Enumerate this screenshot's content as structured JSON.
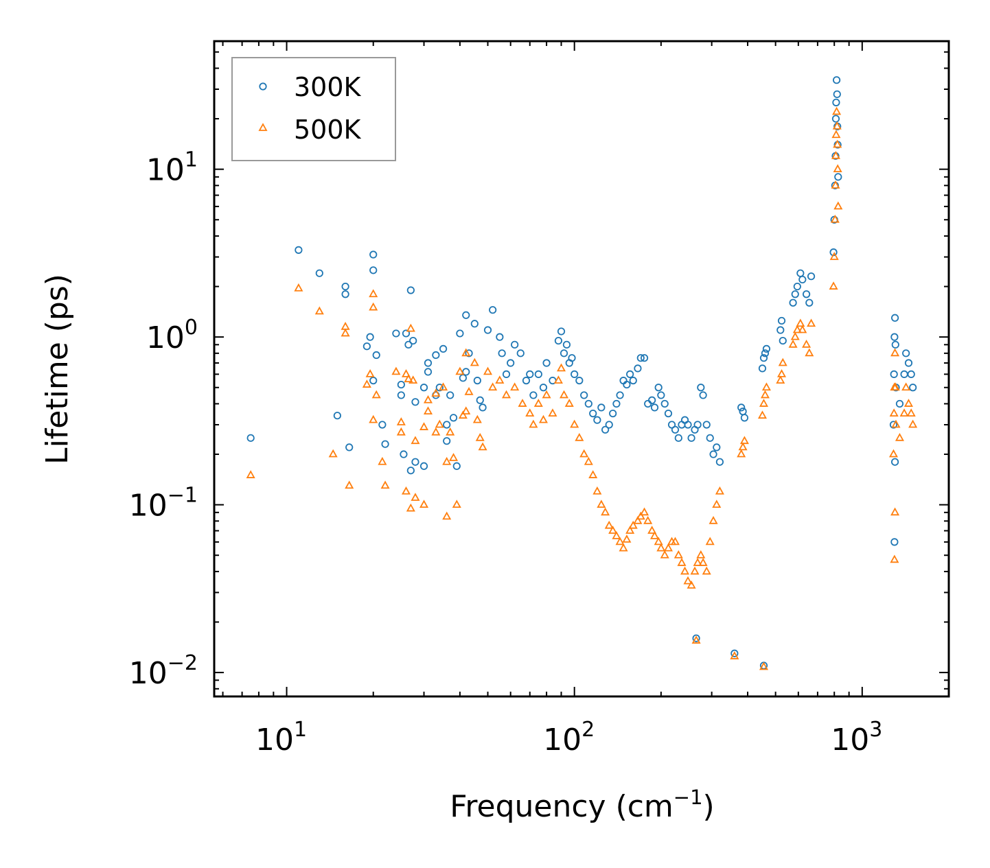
{
  "chart_data": {
    "type": "scatter",
    "x_scale": "log",
    "y_scale": "log",
    "xlabel": "Frequency (cm",
    "xlabel_sup": "−1",
    "xlabel_end": ")",
    "ylabel": "Lifetime (ps)",
    "xlim": [
      5.6,
      2000
    ],
    "ylim": [
      0.0072,
      58
    ],
    "x_ticks": [
      {
        "value": 10,
        "base": "10",
        "exp": "1"
      },
      {
        "value": 100,
        "base": "10",
        "exp": "2"
      },
      {
        "value": 1000,
        "base": "10",
        "exp": "3"
      }
    ],
    "y_ticks": [
      {
        "value": 0.01,
        "base": "10",
        "exp": "−2"
      },
      {
        "value": 0.1,
        "base": "10",
        "exp": "−1"
      },
      {
        "value": 1,
        "base": "10",
        "exp": "0"
      },
      {
        "value": 10,
        "base": "10",
        "exp": "1"
      }
    ],
    "legend": {
      "position": "top-left",
      "entries": [
        "300K",
        "500K"
      ]
    },
    "series": [
      {
        "name": "300K",
        "marker": "circle-open",
        "color": "#1f77b4",
        "points": [
          [
            7.5,
            0.25
          ],
          [
            11,
            3.3
          ],
          [
            13,
            2.4
          ],
          [
            15,
            0.34
          ],
          [
            16,
            2.0
          ],
          [
            16,
            1.8
          ],
          [
            16.5,
            0.22
          ],
          [
            19,
            0.88
          ],
          [
            19.5,
            1.0
          ],
          [
            20,
            2.5
          ],
          [
            20,
            3.1
          ],
          [
            20,
            0.55
          ],
          [
            20.5,
            0.78
          ],
          [
            21.5,
            0.3
          ],
          [
            22,
            0.23
          ],
          [
            24,
            1.05
          ],
          [
            25,
            0.45
          ],
          [
            25,
            0.52
          ],
          [
            25.5,
            0.2
          ],
          [
            26,
            1.05
          ],
          [
            26.5,
            0.9
          ],
          [
            27,
            1.9
          ],
          [
            27,
            0.16
          ],
          [
            27.5,
            0.95
          ],
          [
            28,
            0.41
          ],
          [
            28,
            0.18
          ],
          [
            30,
            0.5
          ],
          [
            30,
            0.17
          ],
          [
            31,
            0.62
          ],
          [
            31,
            0.7
          ],
          [
            33,
            0.78
          ],
          [
            33,
            0.45
          ],
          [
            34,
            0.5
          ],
          [
            35,
            0.85
          ],
          [
            36,
            0.3
          ],
          [
            36,
            0.24
          ],
          [
            37,
            0.45
          ],
          [
            38,
            0.33
          ],
          [
            39,
            0.17
          ],
          [
            40,
            1.05
          ],
          [
            41,
            0.57
          ],
          [
            42,
            1.35
          ],
          [
            42,
            0.62
          ],
          [
            43,
            0.8
          ],
          [
            45,
            1.2
          ],
          [
            46,
            0.55
          ],
          [
            47,
            0.42
          ],
          [
            48,
            0.38
          ],
          [
            50,
            1.1
          ],
          [
            52,
            1.45
          ],
          [
            55,
            1.0
          ],
          [
            56,
            0.8
          ],
          [
            58,
            0.6
          ],
          [
            60,
            0.7
          ],
          [
            62,
            0.9
          ],
          [
            65,
            0.8
          ],
          [
            68,
            0.55
          ],
          [
            70,
            0.6
          ],
          [
            72,
            0.45
          ],
          [
            75,
            0.6
          ],
          [
            78,
            0.5
          ],
          [
            80,
            0.7
          ],
          [
            84,
            0.55
          ],
          [
            88,
            0.95
          ],
          [
            90,
            1.08
          ],
          [
            92,
            0.8
          ],
          [
            94,
            0.9
          ],
          [
            96,
            0.7
          ],
          [
            98,
            0.75
          ],
          [
            100,
            0.6
          ],
          [
            104,
            0.55
          ],
          [
            108,
            0.45
          ],
          [
            112,
            0.4
          ],
          [
            116,
            0.35
          ],
          [
            120,
            0.32
          ],
          [
            124,
            0.38
          ],
          [
            128,
            0.28
          ],
          [
            132,
            0.3
          ],
          [
            136,
            0.35
          ],
          [
            140,
            0.4
          ],
          [
            144,
            0.45
          ],
          [
            148,
            0.55
          ],
          [
            152,
            0.52
          ],
          [
            156,
            0.6
          ],
          [
            160,
            0.55
          ],
          [
            166,
            0.65
          ],
          [
            170,
            0.75
          ],
          [
            175,
            0.75
          ],
          [
            180,
            0.4
          ],
          [
            186,
            0.42
          ],
          [
            190,
            0.38
          ],
          [
            196,
            0.5
          ],
          [
            200,
            0.45
          ],
          [
            206,
            0.4
          ],
          [
            212,
            0.35
          ],
          [
            218,
            0.3
          ],
          [
            224,
            0.28
          ],
          [
            230,
            0.25
          ],
          [
            236,
            0.3
          ],
          [
            242,
            0.32
          ],
          [
            248,
            0.3
          ],
          [
            255,
            0.25
          ],
          [
            262,
            0.28
          ],
          [
            268,
            0.3
          ],
          [
            275,
            0.5
          ],
          [
            280,
            0.45
          ],
          [
            288,
            0.3
          ],
          [
            296,
            0.25
          ],
          [
            304,
            0.2
          ],
          [
            312,
            0.22
          ],
          [
            320,
            0.18
          ],
          [
            265,
            0.016
          ],
          [
            360,
            0.013
          ],
          [
            380,
            0.38
          ],
          [
            385,
            0.36
          ],
          [
            390,
            0.33
          ],
          [
            455,
            0.011
          ],
          [
            450,
            0.65
          ],
          [
            455,
            0.75
          ],
          [
            460,
            0.8
          ],
          [
            465,
            0.85
          ],
          [
            520,
            1.1
          ],
          [
            525,
            1.25
          ],
          [
            530,
            0.95
          ],
          [
            575,
            1.6
          ],
          [
            585,
            1.8
          ],
          [
            595,
            2.0
          ],
          [
            610,
            2.4
          ],
          [
            620,
            2.2
          ],
          [
            640,
            1.8
          ],
          [
            655,
            1.6
          ],
          [
            665,
            2.3
          ],
          [
            795,
            3.2
          ],
          [
            800,
            5.0
          ],
          [
            805,
            8.0
          ],
          [
            808,
            12
          ],
          [
            810,
            20
          ],
          [
            812,
            25
          ],
          [
            815,
            34
          ],
          [
            818,
            28
          ],
          [
            820,
            18
          ],
          [
            822,
            14
          ],
          [
            825,
            9
          ],
          [
            1285,
            0.3
          ],
          [
            1290,
            0.6
          ],
          [
            1295,
            1.0
          ],
          [
            1300,
            1.3
          ],
          [
            1305,
            0.9
          ],
          [
            1300,
            0.18
          ],
          [
            1295,
            0.06
          ],
          [
            1310,
            0.5
          ],
          [
            1350,
            0.4
          ],
          [
            1400,
            0.6
          ],
          [
            1420,
            0.8
          ],
          [
            1450,
            0.7
          ],
          [
            1480,
            0.6
          ],
          [
            1500,
            0.5
          ]
        ]
      },
      {
        "name": "500K",
        "marker": "triangle-open",
        "color": "#ff7f0e",
        "points": [
          [
            7.5,
            0.15
          ],
          [
            11,
            1.95
          ],
          [
            13,
            1.42
          ],
          [
            14.5,
            0.2
          ],
          [
            16,
            1.05
          ],
          [
            16,
            1.15
          ],
          [
            16.5,
            0.13
          ],
          [
            19,
            0.52
          ],
          [
            19.5,
            0.6
          ],
          [
            20,
            1.5
          ],
          [
            20,
            1.8
          ],
          [
            20,
            0.32
          ],
          [
            20.5,
            0.45
          ],
          [
            21.5,
            0.18
          ],
          [
            22,
            0.13
          ],
          [
            24,
            0.62
          ],
          [
            25,
            0.27
          ],
          [
            25,
            0.31
          ],
          [
            26,
            0.12
          ],
          [
            26,
            0.6
          ],
          [
            26.5,
            0.56
          ],
          [
            27,
            1.12
          ],
          [
            27,
            0.095
          ],
          [
            27.5,
            0.55
          ],
          [
            28,
            0.24
          ],
          [
            28,
            0.11
          ],
          [
            30,
            0.29
          ],
          [
            30,
            0.1
          ],
          [
            31,
            0.36
          ],
          [
            31,
            0.42
          ],
          [
            33,
            0.46
          ],
          [
            33,
            0.27
          ],
          [
            34,
            0.3
          ],
          [
            35,
            0.5
          ],
          [
            36,
            0.18
          ],
          [
            36,
            0.085
          ],
          [
            37,
            0.27
          ],
          [
            38,
            0.19
          ],
          [
            39,
            0.1
          ],
          [
            40,
            0.62
          ],
          [
            41,
            0.34
          ],
          [
            42,
            0.8
          ],
          [
            42,
            0.36
          ],
          [
            43,
            0.47
          ],
          [
            45,
            0.7
          ],
          [
            46,
            0.32
          ],
          [
            47,
            0.25
          ],
          [
            48,
            0.22
          ],
          [
            50,
            0.62
          ],
          [
            52,
            0.5
          ],
          [
            55,
            0.55
          ],
          [
            58,
            0.45
          ],
          [
            62,
            0.5
          ],
          [
            66,
            0.4
          ],
          [
            70,
            0.35
          ],
          [
            72,
            0.3
          ],
          [
            75,
            0.4
          ],
          [
            78,
            0.32
          ],
          [
            80,
            0.45
          ],
          [
            84,
            0.35
          ],
          [
            88,
            0.55
          ],
          [
            90,
            0.65
          ],
          [
            92,
            0.45
          ],
          [
            96,
            0.4
          ],
          [
            100,
            0.3
          ],
          [
            104,
            0.25
          ],
          [
            108,
            0.2
          ],
          [
            112,
            0.18
          ],
          [
            116,
            0.15
          ],
          [
            120,
            0.12
          ],
          [
            124,
            0.1
          ],
          [
            128,
            0.09
          ],
          [
            132,
            0.075
          ],
          [
            136,
            0.07
          ],
          [
            140,
            0.065
          ],
          [
            144,
            0.06
          ],
          [
            148,
            0.055
          ],
          [
            152,
            0.062
          ],
          [
            156,
            0.07
          ],
          [
            160,
            0.075
          ],
          [
            166,
            0.08
          ],
          [
            170,
            0.085
          ],
          [
            175,
            0.09
          ],
          [
            180,
            0.08
          ],
          [
            186,
            0.07
          ],
          [
            190,
            0.065
          ],
          [
            196,
            0.06
          ],
          [
            200,
            0.055
          ],
          [
            206,
            0.05
          ],
          [
            212,
            0.055
          ],
          [
            218,
            0.06
          ],
          [
            224,
            0.06
          ],
          [
            230,
            0.05
          ],
          [
            236,
            0.045
          ],
          [
            242,
            0.04
          ],
          [
            248,
            0.035
          ],
          [
            255,
            0.033
          ],
          [
            262,
            0.04
          ],
          [
            268,
            0.045
          ],
          [
            275,
            0.05
          ],
          [
            280,
            0.045
          ],
          [
            288,
            0.04
          ],
          [
            296,
            0.06
          ],
          [
            304,
            0.08
          ],
          [
            312,
            0.1
          ],
          [
            320,
            0.12
          ],
          [
            265,
            0.0155
          ],
          [
            360,
            0.0125
          ],
          [
            380,
            0.2
          ],
          [
            385,
            0.22
          ],
          [
            390,
            0.24
          ],
          [
            455,
            0.0108
          ],
          [
            450,
            0.34
          ],
          [
            455,
            0.4
          ],
          [
            460,
            0.45
          ],
          [
            465,
            0.5
          ],
          [
            520,
            0.55
          ],
          [
            525,
            0.6
          ],
          [
            530,
            0.7
          ],
          [
            575,
            0.9
          ],
          [
            585,
            1.0
          ],
          [
            595,
            1.1
          ],
          [
            610,
            1.2
          ],
          [
            620,
            1.1
          ],
          [
            640,
            0.9
          ],
          [
            655,
            0.8
          ],
          [
            665,
            1.2
          ],
          [
            795,
            2.0
          ],
          [
            800,
            3.0
          ],
          [
            805,
            5.0
          ],
          [
            808,
            8.0
          ],
          [
            810,
            12
          ],
          [
            812,
            16
          ],
          [
            815,
            22
          ],
          [
            818,
            18
          ],
          [
            820,
            14
          ],
          [
            822,
            10
          ],
          [
            825,
            6
          ],
          [
            1285,
            0.2
          ],
          [
            1290,
            0.35
          ],
          [
            1295,
            0.5
          ],
          [
            1300,
            0.8
          ],
          [
            1305,
            0.5
          ],
          [
            1300,
            0.09
          ],
          [
            1295,
            0.047
          ],
          [
            1310,
            0.3
          ],
          [
            1350,
            0.25
          ],
          [
            1400,
            0.35
          ],
          [
            1420,
            0.5
          ],
          [
            1450,
            0.4
          ],
          [
            1480,
            0.35
          ],
          [
            1500,
            0.3
          ]
        ]
      }
    ]
  }
}
